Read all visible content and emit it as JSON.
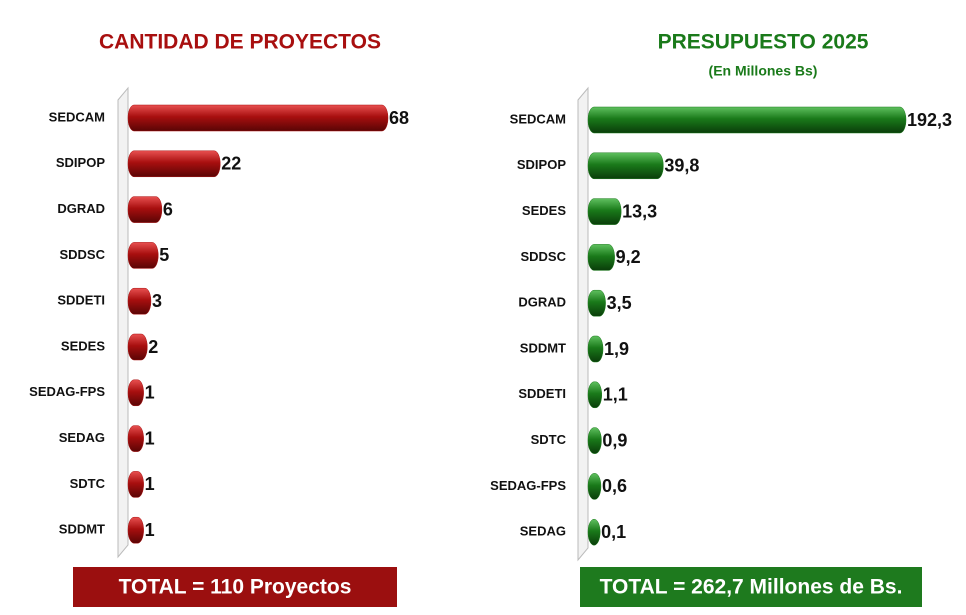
{
  "chart_data": [
    {
      "type": "bar",
      "title": "CANTIDAD DE PROYECTOS",
      "color": "#a80f0f",
      "categories": [
        "SEDCAM",
        "SDIPOP",
        "DGRAD",
        "SDDSC",
        "SDDETI",
        "SEDES",
        "SEDAG-FPS",
        "SEDAG",
        "SDTC",
        "SDDMT"
      ],
      "values": [
        68,
        22,
        6,
        5,
        3,
        2,
        1,
        1,
        1,
        1
      ],
      "annotation": "TOTAL = 110 Proyectos"
    },
    {
      "type": "bar",
      "title": "PRESUPUESTO  2025",
      "subtitle": "(En Millones Bs)",
      "color": "#1a7a1a",
      "categories": [
        "SEDCAM",
        "SDIPOP",
        "SEDES",
        "SDDSC",
        "DGRAD",
        "SDDMT",
        "SDDETI",
        "SDTC",
        "SEDAG-FPS",
        "SEDAG"
      ],
      "values": [
        192.3,
        39.8,
        13.3,
        9.2,
        3.5,
        1.9,
        1.1,
        0.9,
        0.6,
        0.1
      ],
      "value_labels": [
        "192,3",
        "39,8",
        "13,3",
        "9,2",
        "3,5",
        "1,9",
        "1,1",
        "0,9",
        "0,6",
        "0,1"
      ],
      "annotation": "TOTAL = 262,7 Millones de Bs."
    }
  ]
}
